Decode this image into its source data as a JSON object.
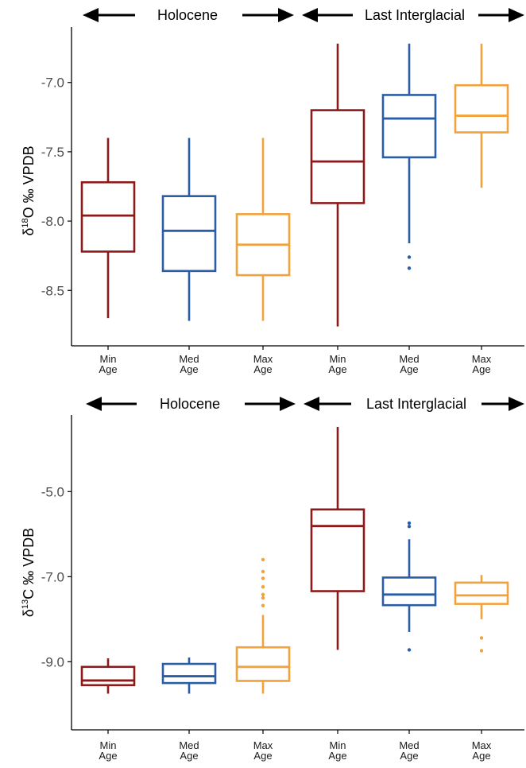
{
  "colors": {
    "min": "#8B1A1A",
    "med": "#2B5DA6",
    "max": "#F2A23A",
    "axis": "#000000",
    "arrow": "#000000"
  },
  "periods": {
    "holocene": "Holocene",
    "last_interglacial": "Last Interglacial"
  },
  "chart_data": [
    {
      "type": "box",
      "panel": "top",
      "ylabel_prefix": "δ",
      "ylabel_sup": "18",
      "ylabel_rest": "O ‰ VPDB",
      "ylim": [
        -8.9,
        -6.6
      ],
      "yticks": [
        -7.0,
        -7.5,
        -8.0,
        -8.5
      ],
      "ytick_labels": [
        "-7.0",
        "-7.5",
        "-8.0",
        "-8.5"
      ],
      "categories": [
        {
          "line1": "Min",
          "line2": "Age"
        },
        {
          "line1": "Med",
          "line2": "Age"
        },
        {
          "line1": "Max",
          "line2": "Age"
        },
        {
          "line1": "Min",
          "line2": "Age"
        },
        {
          "line1": "Med",
          "line2": "Age"
        },
        {
          "line1": "Max",
          "line2": "Age"
        }
      ],
      "boxes": [
        {
          "period": "Holocene",
          "series": "min",
          "whisker_low": -8.7,
          "q1": -8.22,
          "median": -7.96,
          "q3": -7.72,
          "whisker_high": -7.4,
          "outliers": []
        },
        {
          "period": "Holocene",
          "series": "med",
          "whisker_low": -8.72,
          "q1": -8.36,
          "median": -8.07,
          "q3": -7.82,
          "whisker_high": -7.4,
          "outliers": []
        },
        {
          "period": "Holocene",
          "series": "max",
          "whisker_low": -8.72,
          "q1": -8.39,
          "median": -8.17,
          "q3": -7.95,
          "whisker_high": -7.4,
          "outliers": []
        },
        {
          "period": "Last Interglacial",
          "series": "min",
          "whisker_low": -8.76,
          "q1": -7.87,
          "median": -7.57,
          "q3": -7.2,
          "whisker_high": -6.72,
          "outliers": []
        },
        {
          "period": "Last Interglacial",
          "series": "med",
          "whisker_low": -8.16,
          "q1": -7.54,
          "median": -7.26,
          "q3": -7.09,
          "whisker_high": -6.72,
          "outliers": [
            -8.26,
            -8.34
          ]
        },
        {
          "period": "Last Interglacial",
          "series": "max",
          "whisker_low": -7.76,
          "q1": -7.36,
          "median": -7.24,
          "q3": -7.02,
          "whisker_high": -6.72,
          "outliers": []
        }
      ]
    },
    {
      "type": "box",
      "panel": "bottom",
      "ylabel_prefix": "δ",
      "ylabel_sup": "13",
      "ylabel_rest": "C ‰ VPDB",
      "ylim": [
        -10.6,
        -3.2
      ],
      "yticks": [
        -5.0,
        -7.0,
        -9.0
      ],
      "ytick_labels": [
        "-5.0",
        "-7.0",
        "-9.0"
      ],
      "categories": [
        {
          "line1": "Min",
          "line2": "Age"
        },
        {
          "line1": "Med",
          "line2": "Age"
        },
        {
          "line1": "Max",
          "line2": "Age"
        },
        {
          "line1": "Min",
          "line2": "Age"
        },
        {
          "line1": "Med",
          "line2": "Age"
        },
        {
          "line1": "Max",
          "line2": "Age"
        }
      ],
      "boxes": [
        {
          "period": "Holocene",
          "series": "min",
          "whisker_low": -9.75,
          "q1": -9.55,
          "median": -9.44,
          "q3": -9.12,
          "whisker_high": -8.92,
          "outliers": []
        },
        {
          "period": "Holocene",
          "series": "med",
          "whisker_low": -9.75,
          "q1": -9.5,
          "median": -9.34,
          "q3": -9.05,
          "whisker_high": -8.9,
          "outliers": []
        },
        {
          "period": "Holocene",
          "series": "max",
          "whisker_low": -9.75,
          "q1": -9.45,
          "median": -9.12,
          "q3": -8.66,
          "whisker_high": -7.9,
          "outliers": [
            -6.6,
            -6.88,
            -7.04,
            -7.24,
            -7.42,
            -7.5,
            -7.68
          ]
        },
        {
          "period": "Last Interglacial",
          "series": "min",
          "whisker_low": -8.72,
          "q1": -7.34,
          "median": -5.81,
          "q3": -5.42,
          "whisker_high": -3.48,
          "outliers": []
        },
        {
          "period": "Last Interglacial",
          "series": "med",
          "whisker_low": -8.3,
          "q1": -7.67,
          "median": -7.42,
          "q3": -7.02,
          "whisker_high": -6.12,
          "outliers": [
            -5.74,
            -5.82,
            -8.72
          ]
        },
        {
          "period": "Last Interglacial",
          "series": "max",
          "whisker_low": -8.0,
          "q1": -7.64,
          "median": -7.44,
          "q3": -7.14,
          "whisker_high": -6.96,
          "outliers": [
            -8.44,
            -8.74
          ]
        }
      ]
    }
  ]
}
